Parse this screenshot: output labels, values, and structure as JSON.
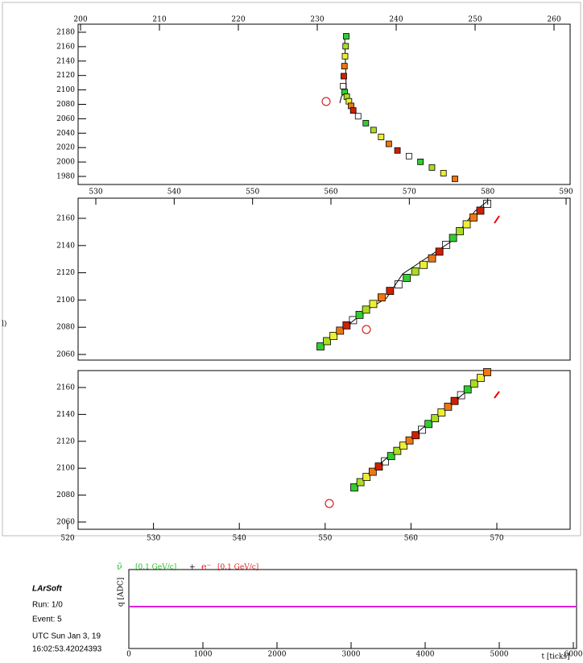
{
  "side_label": "l)",
  "views": [
    {
      "top_ticks": [
        200,
        210,
        220,
        230,
        240,
        250,
        260
      ],
      "y_ticks": [
        2180,
        2160,
        2140,
        2120,
        2100,
        2080,
        2060,
        2040,
        2020,
        2000,
        1980
      ]
    },
    {
      "top_ticks": [
        530,
        540,
        550,
        560,
        570,
        580,
        590
      ],
      "y_ticks": [
        2160,
        2140,
        2120,
        2100,
        2080,
        2060
      ]
    },
    {
      "bottom_ticks": [
        520,
        530,
        540,
        550,
        560,
        570
      ],
      "y_ticks": [
        2160,
        2140,
        2120,
        2100,
        2080,
        2060
      ]
    }
  ],
  "waveform": {
    "x_ticks": [
      0,
      1000,
      2000,
      3000,
      4000,
      5000,
      6000
    ],
    "x_label": "t [ticks]",
    "y_label": "q [ADC]",
    "legend": {
      "nu_symbol": "ν̄",
      "nu_scale": "[0.1 GeV/c]",
      "plus": "+",
      "e_symbol": "e⁻",
      "e_scale": "[0.1 GeV/c]"
    }
  },
  "info": {
    "program": "LArSoft",
    "run": "Run:   1/0",
    "event": "Event: 5",
    "date": "UTC Sun Jan 3, 19",
    "time": "16:02:53.42024393"
  }
}
